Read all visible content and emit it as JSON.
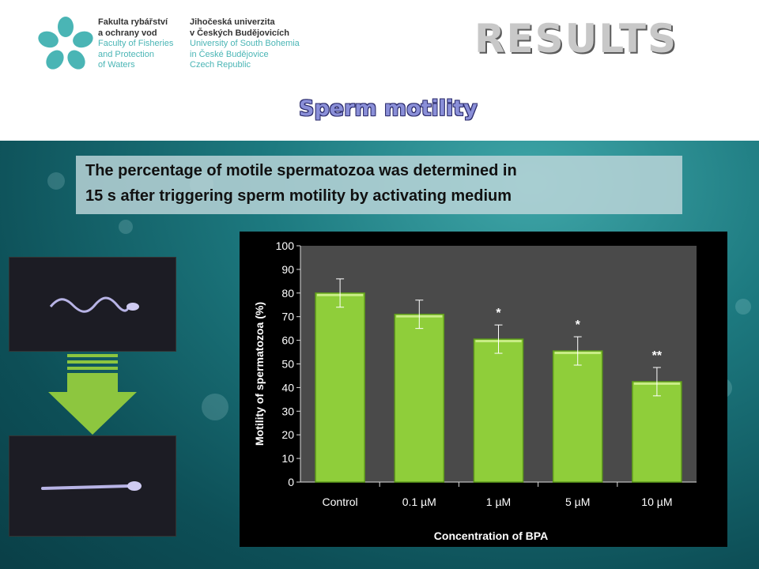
{
  "header": {
    "faculty_lines": [
      "Fakulta rybářství",
      "a ochrany vod",
      "Faculty of Fisheries",
      "and Protection",
      "of Waters"
    ],
    "university_lines": [
      "Jihočeská univerzita",
      "v Českých Budějovicích",
      "University of South Bohemia",
      "in České Budějovice",
      "Czech Republic"
    ],
    "title": "RESULTS",
    "subtitle": "Sperm motility"
  },
  "description": {
    "line1": "The percentage of motile spermatozoa was determined in",
    "line2": "15 s after triggering sperm motility by activating medium"
  },
  "colors": {
    "bar": "#8fce3a",
    "bar_dark": "#5e9a1c",
    "plot_bg": "#4a4a4a",
    "arrow": "#8dc63f"
  },
  "icons": [
    "flower-logo-icon",
    "sperm-motile-photo",
    "sperm-immotile-photo",
    "down-arrow-icon"
  ],
  "chart_data": {
    "type": "bar",
    "categories": [
      "Control",
      "0.1 µM",
      "1 µM",
      "5 µM",
      "10 µM"
    ],
    "values": [
      80,
      71,
      60.5,
      55.5,
      42.5
    ],
    "errors": [
      6,
      6,
      6,
      6,
      6
    ],
    "significance": [
      "",
      "",
      "*",
      "*",
      "**"
    ],
    "xlabel": "Concentration of BPA",
    "ylabel": "Motility of spermatozoa (%)",
    "ylim": [
      0,
      100
    ],
    "yticks": [
      "0",
      "10",
      "20",
      "30",
      "40",
      "50",
      "60",
      "70",
      "80",
      "90",
      "100"
    ],
    "grid": false,
    "legend": "none"
  }
}
